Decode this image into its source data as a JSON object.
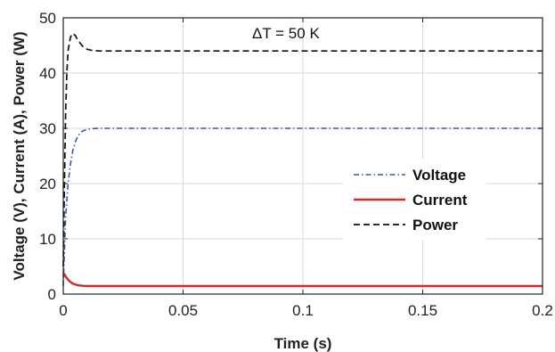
{
  "chart_data": {
    "type": "line",
    "title": "",
    "xlabel": "Time (s)",
    "ylabel": "Voltage (V), Current (A), Power (W)",
    "xlim": [
      0,
      0.2
    ],
    "ylim": [
      0,
      50
    ],
    "xticks": [
      0,
      0.05,
      0.1,
      0.15,
      0.2
    ],
    "xtick_labels": [
      "0",
      "0.05",
      "0.1",
      "0.15",
      "0.2"
    ],
    "yticks": [
      0,
      10,
      20,
      30,
      40,
      50
    ],
    "ytick_labels": [
      "0",
      "10",
      "20",
      "30",
      "40",
      "50"
    ],
    "grid": true,
    "legend_position": "center-right",
    "annotation": "ΔT = 50 K",
    "series": [
      {
        "name": "Voltage",
        "color": "#3a55a8",
        "style": "dash-dot",
        "x": [
          0,
          0.0005,
          0.001,
          0.002,
          0.003,
          0.004,
          0.005,
          0.006,
          0.007,
          0.008,
          0.01,
          0.012,
          0.015,
          0.02,
          0.05,
          0.1,
          0.15,
          0.2
        ],
        "y": [
          1.5,
          8,
          14,
          20,
          23.5,
          26,
          27.5,
          28.5,
          29.1,
          29.5,
          29.8,
          29.95,
          30,
          30,
          30,
          30,
          30,
          30
        ]
      },
      {
        "name": "Current",
        "color": "#d42a2a",
        "style": "solid",
        "x": [
          0,
          0.0005,
          0.001,
          0.002,
          0.003,
          0.004,
          0.006,
          0.008,
          0.01,
          0.015,
          0.02,
          0.05,
          0.1,
          0.15,
          0.2
        ],
        "y": [
          3.2,
          3.6,
          3.2,
          2.6,
          2.2,
          1.9,
          1.6,
          1.5,
          1.45,
          1.45,
          1.45,
          1.45,
          1.45,
          1.45,
          1.45
        ]
      },
      {
        "name": "Power",
        "color": "#111111",
        "style": "dashed",
        "x": [
          0,
          0.0005,
          0.001,
          0.0015,
          0.002,
          0.003,
          0.004,
          0.005,
          0.006,
          0.008,
          0.01,
          0.012,
          0.015,
          0.02,
          0.05,
          0.1,
          0.15,
          0.2
        ],
        "y": [
          5,
          20,
          33,
          40,
          44,
          46.5,
          47.2,
          46.8,
          46,
          44.9,
          44.3,
          44.1,
          44,
          44,
          44,
          44,
          44,
          44
        ]
      }
    ]
  }
}
